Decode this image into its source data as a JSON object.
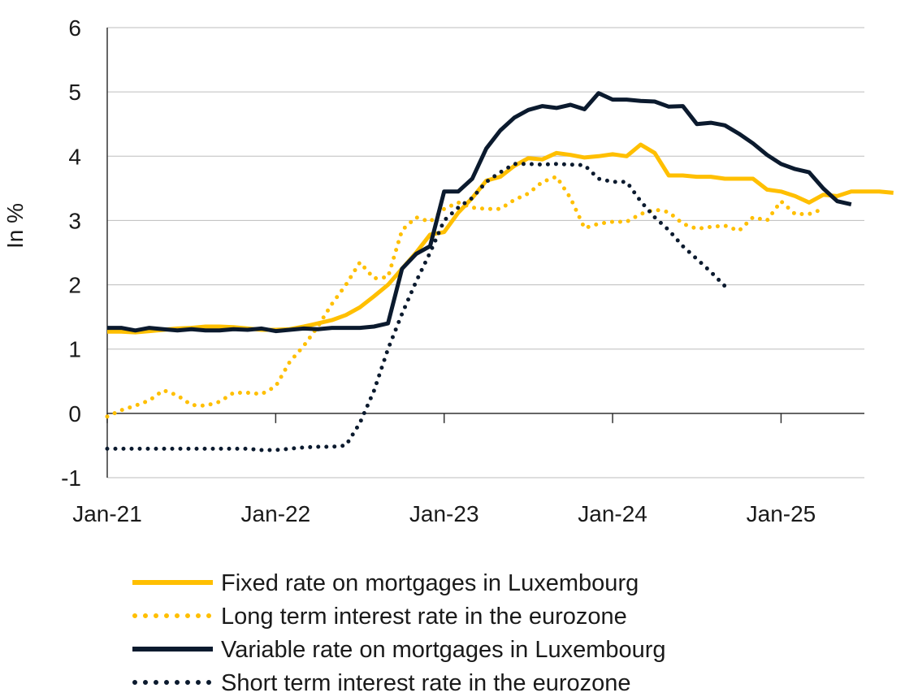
{
  "chart_data": {
    "type": "line",
    "ylabel": "In %",
    "ylim": [
      -1,
      6
    ],
    "yticks": [
      "6",
      "5",
      "4",
      "3",
      "2",
      "1",
      "0",
      "-1"
    ],
    "xtick_labels": [
      "Jan-21",
      "Jan-22",
      "Jan-23",
      "Jan-24",
      "Jan-25"
    ],
    "grid": "horizontal",
    "legend_position": "bottom",
    "colors": {
      "yellow": "#FFBF00",
      "navy": "#0B1A2E",
      "grid": "#bdbdbd"
    },
    "x_start": "2021-01",
    "series": [
      {
        "name": "Fixed rate on mortgages in Luxembourg",
        "style": "solid",
        "color": "#FFBF00",
        "values": [
          1.27,
          1.27,
          1.26,
          1.28,
          1.3,
          1.32,
          1.33,
          1.35,
          1.35,
          1.34,
          1.32,
          1.3,
          1.3,
          1.31,
          1.35,
          1.4,
          1.45,
          1.53,
          1.65,
          1.82,
          2.0,
          2.25,
          2.5,
          2.78,
          2.82,
          3.12,
          3.35,
          3.62,
          3.68,
          3.85,
          3.97,
          3.95,
          4.05,
          4.02,
          3.98,
          4.0,
          4.03,
          4.0,
          4.18,
          4.05,
          3.7,
          3.7,
          3.68,
          3.68,
          3.65,
          3.65,
          3.65,
          3.48,
          3.45,
          3.38,
          3.28,
          3.4,
          3.38,
          3.45,
          3.45,
          3.45,
          3.43
        ]
      },
      {
        "name": "Long term interest rate in the eurozone",
        "style": "dotted",
        "color": "#FFBF00",
        "values": [
          -0.05,
          0.05,
          0.12,
          0.2,
          0.36,
          0.28,
          0.13,
          0.12,
          0.18,
          0.32,
          0.32,
          0.3,
          0.42,
          0.8,
          1.05,
          1.35,
          1.7,
          2.0,
          2.35,
          2.1,
          2.12,
          2.85,
          3.05,
          2.98,
          3.18,
          3.28,
          3.2,
          3.18,
          3.18,
          3.32,
          3.42,
          3.6,
          3.68,
          3.35,
          2.88,
          2.95,
          2.98,
          2.98,
          3.1,
          3.17,
          3.13,
          2.95,
          2.87,
          2.9,
          2.92,
          2.84,
          3.05,
          3.0,
          3.3,
          3.1,
          3.1,
          3.18
        ]
      },
      {
        "name": "Variable rate on mortgages in Luxembourg",
        "style": "solid",
        "color": "#0B1A2E",
        "values": [
          1.33,
          1.33,
          1.29,
          1.33,
          1.31,
          1.29,
          1.31,
          1.29,
          1.29,
          1.31,
          1.3,
          1.32,
          1.28,
          1.3,
          1.32,
          1.31,
          1.33,
          1.33,
          1.33,
          1.35,
          1.4,
          2.25,
          2.48,
          2.6,
          3.45,
          3.45,
          3.65,
          4.12,
          4.4,
          4.6,
          4.72,
          4.78,
          4.75,
          4.8,
          4.73,
          4.98,
          4.88,
          4.88,
          4.86,
          4.85,
          4.77,
          4.78,
          4.5,
          4.52,
          4.48,
          4.35,
          4.2,
          4.02,
          3.88,
          3.8,
          3.75,
          3.5,
          3.3,
          3.25
        ]
      },
      {
        "name": "Short term interest rate in the eurozone",
        "style": "dotted",
        "color": "#0B1A2E",
        "values": [
          -0.55,
          -0.55,
          -0.55,
          -0.55,
          -0.55,
          -0.55,
          -0.55,
          -0.55,
          -0.55,
          -0.55,
          -0.55,
          -0.57,
          -0.57,
          -0.55,
          -0.53,
          -0.52,
          -0.52,
          -0.5,
          -0.15,
          0.35,
          1.0,
          1.55,
          2.05,
          2.5,
          3.0,
          3.2,
          3.35,
          3.6,
          3.75,
          3.88,
          3.88,
          3.87,
          3.88,
          3.87,
          3.86,
          3.65,
          3.6,
          3.6,
          3.3,
          3.05,
          2.85,
          2.6,
          2.4,
          2.2,
          1.98
        ]
      }
    ]
  }
}
